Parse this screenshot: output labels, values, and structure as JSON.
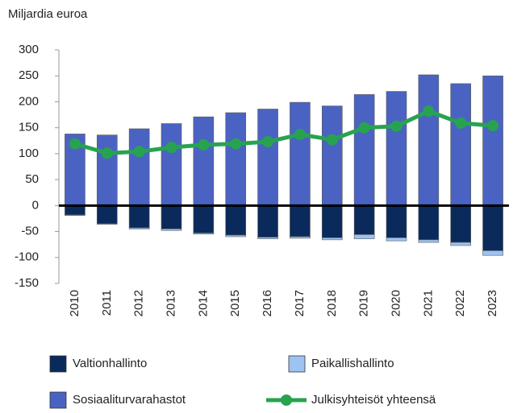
{
  "chart_data": {
    "type": "bar",
    "stacked": true,
    "y_label": "Miljardia euroa",
    "categories": [
      "2010",
      "2011",
      "2012",
      "2013",
      "2014",
      "2015",
      "2016",
      "2017",
      "2018",
      "2019",
      "2020",
      "2021",
      "2022",
      "2023"
    ],
    "series": [
      {
        "name": "Valtionhallinto",
        "color": "#0b2a5c",
        "values": [
          -18,
          -35,
          -43,
          -45,
          -53,
          -57,
          -61,
          -60,
          -62,
          -56,
          -62,
          -66,
          -71,
          -87
        ]
      },
      {
        "name": "Paikallishallinto",
        "color": "#9cc3f2",
        "values": [
          -1,
          -1,
          -2,
          -3,
          -2,
          -3,
          -3,
          -3,
          -4,
          -8,
          -6,
          -5,
          -6,
          -9
        ]
      },
      {
        "name": "Sosiaaliturvarahastot",
        "color": "#4a63c2",
        "values": [
          138,
          136,
          148,
          158,
          171,
          179,
          186,
          199,
          192,
          214,
          220,
          252,
          235,
          250
        ]
      },
      {
        "name": "Julkisyhteisöt yhteensä",
        "type": "line",
        "color": "#27a350",
        "values": [
          119,
          101,
          104,
          112,
          117,
          119,
          123,
          137,
          127,
          150,
          153,
          182,
          159,
          154
        ]
      }
    ],
    "ylim": [
      -150,
      300
    ],
    "yticks": [
      -150,
      -100,
      -50,
      0,
      50,
      100,
      150,
      200,
      250,
      300
    ]
  }
}
